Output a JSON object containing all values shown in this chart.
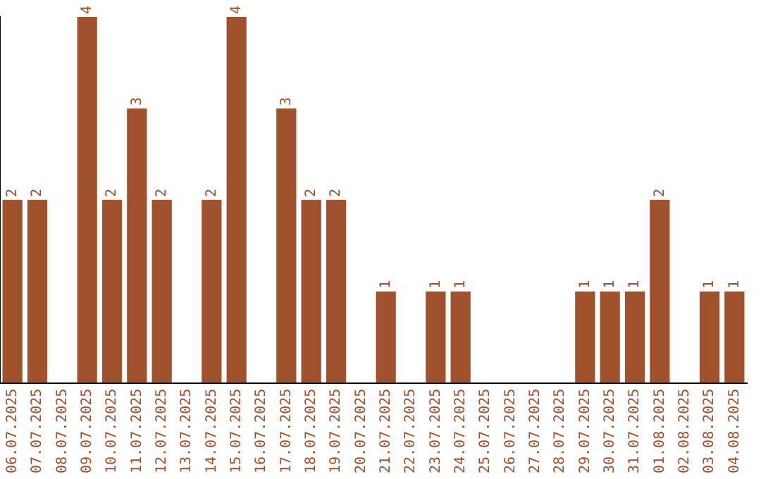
{
  "chart_data": {
    "type": "bar",
    "categories": [
      "06.07.2025",
      "07.07.2025",
      "08.07.2025",
      "09.07.2025",
      "10.07.2025",
      "11.07.2025",
      "12.07.2025",
      "13.07.2025",
      "14.07.2025",
      "15.07.2025",
      "16.07.2025",
      "17.07.2025",
      "18.07.2025",
      "19.07.2025",
      "20.07.2025",
      "21.07.2025",
      "22.07.2025",
      "23.07.2025",
      "24.07.2025",
      "25.07.2025",
      "26.07.2025",
      "27.07.2025",
      "28.07.2025",
      "29.07.2025",
      "30.07.2025",
      "31.07.2025",
      "01.08.2025",
      "02.08.2025",
      "03.08.2025",
      "04.08.2025"
    ],
    "values": [
      2,
      2,
      0,
      4,
      2,
      3,
      2,
      0,
      2,
      4,
      0,
      3,
      2,
      2,
      0,
      1,
      0,
      1,
      1,
      0,
      0,
      0,
      0,
      1,
      1,
      1,
      2,
      0,
      1,
      1
    ],
    "value_labels": [
      "2",
      "2",
      null,
      "4",
      "2",
      "3",
      "2",
      null,
      "2",
      "4",
      null,
      "3",
      "2",
      "2",
      null,
      "1",
      null,
      "1",
      "1",
      null,
      null,
      null,
      null,
      "1",
      "1",
      "1",
      "2",
      null,
      "1",
      "1"
    ],
    "color": "#a0522d",
    "ylim": [
      0,
      4
    ],
    "tick_labels": "x",
    "grid": false,
    "legend": false
  }
}
